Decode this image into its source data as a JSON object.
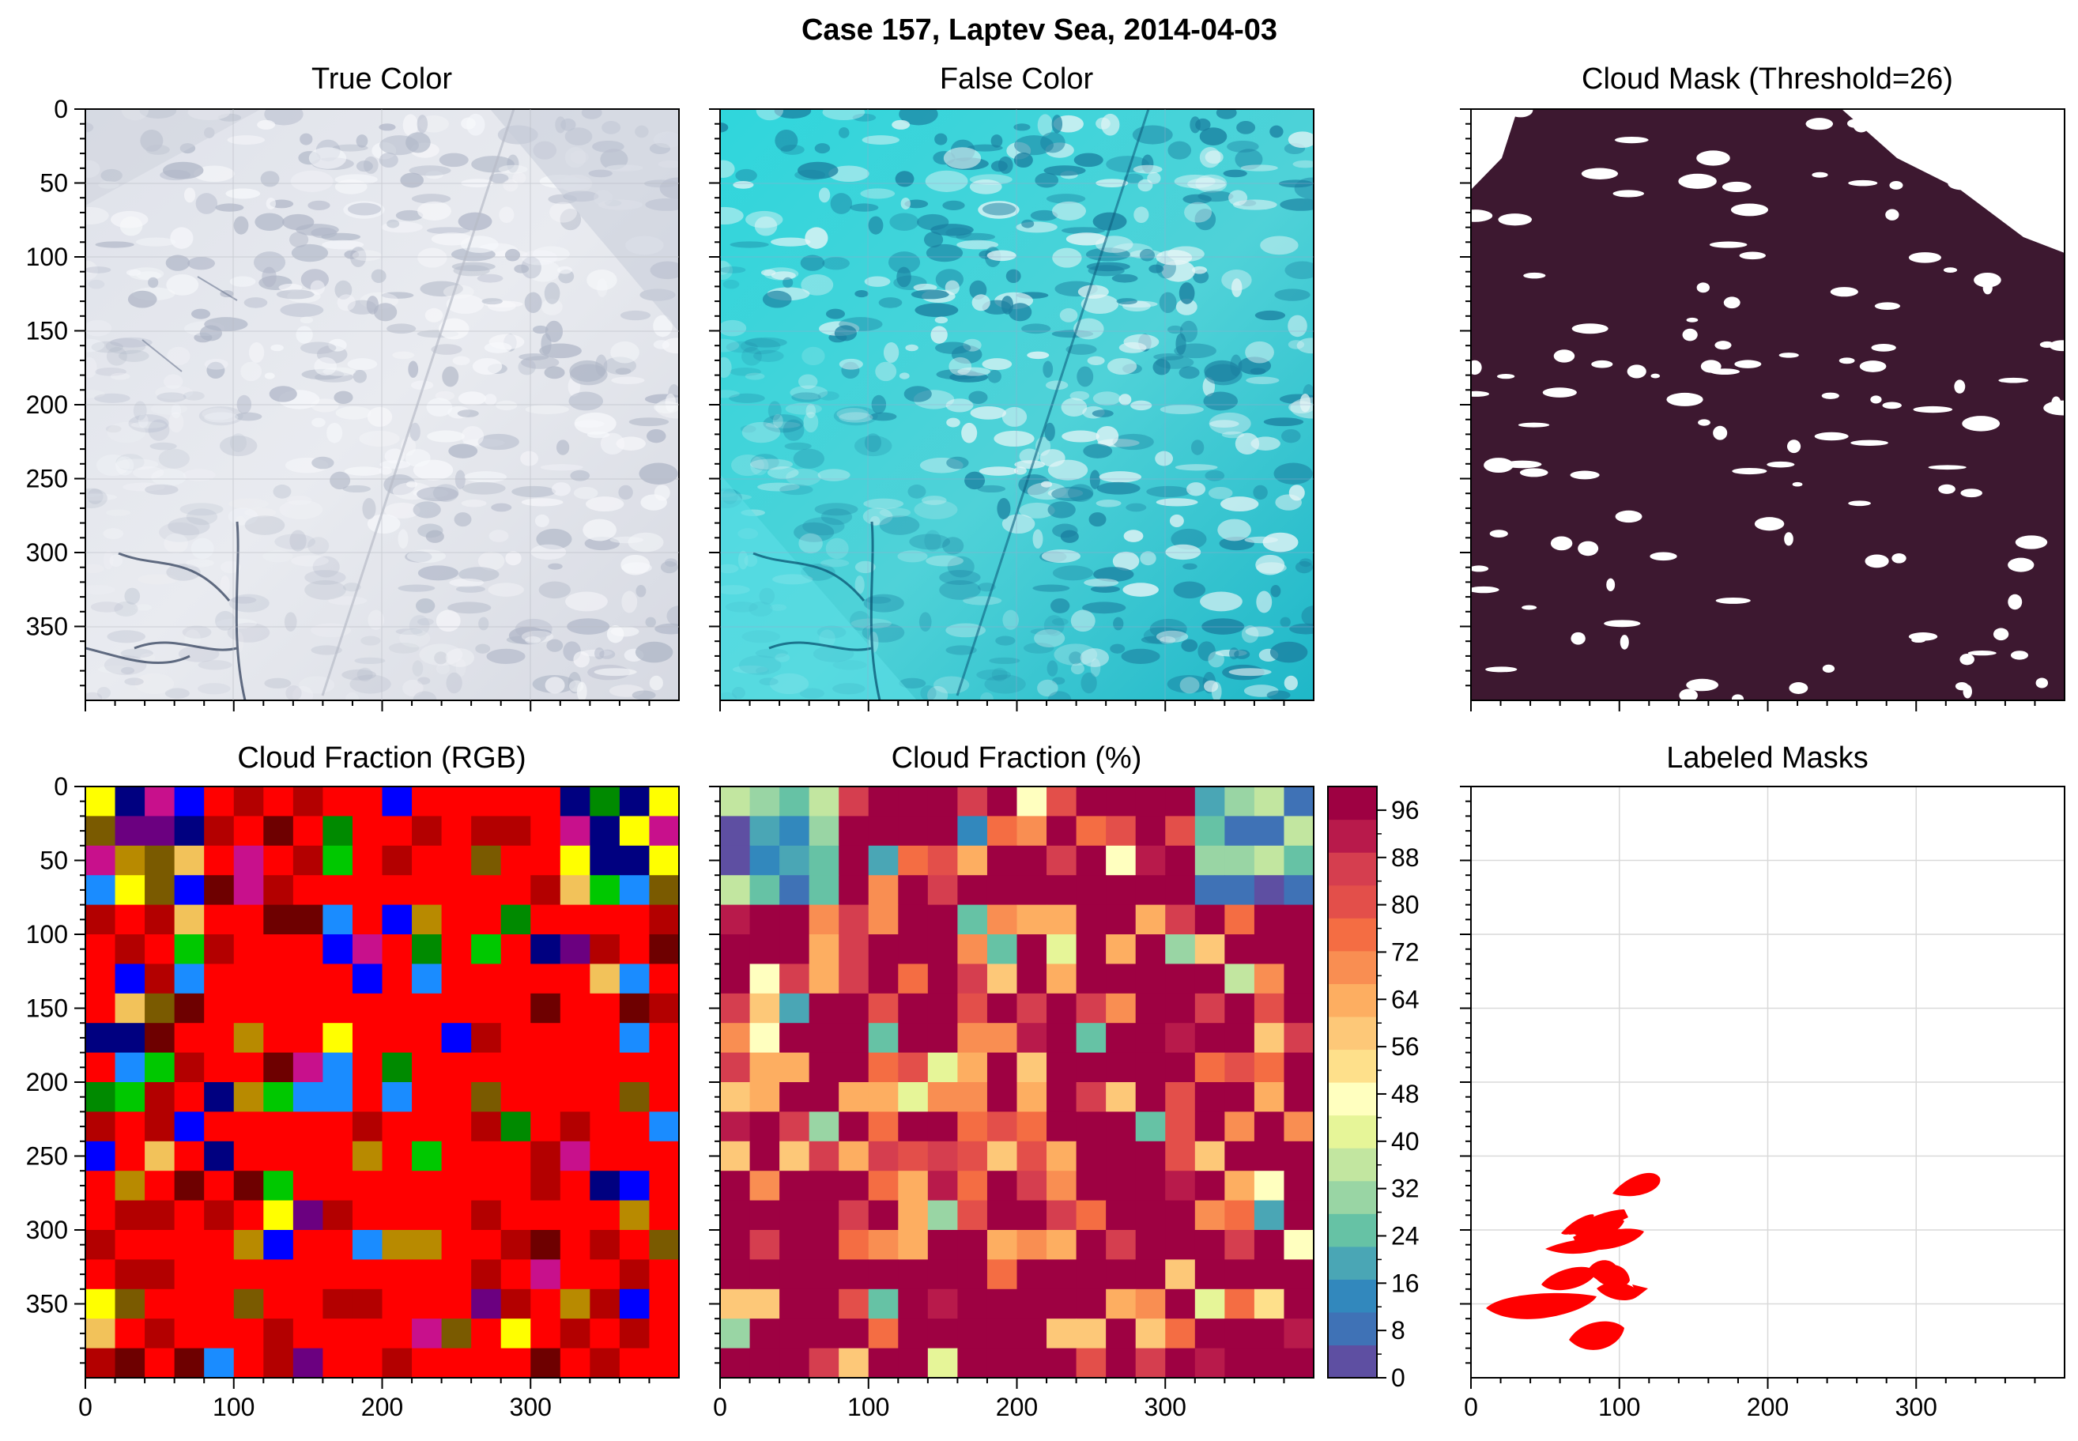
{
  "figure": {
    "suptitle": "Case 157, Laptev Sea, 2014-04-03"
  },
  "chart_data": [
    {
      "type": "image",
      "title": "True Color",
      "xlim": [
        0,
        400
      ],
      "ylim": [
        400,
        0
      ],
      "yticks": [
        "0",
        "50",
        "100",
        "150",
        "200",
        "250",
        "300",
        "350"
      ],
      "description_colors": {
        "ice": "#e3e6ec",
        "cloud": "#f4f5f8",
        "lead": "#3c4a64"
      }
    },
    {
      "type": "image",
      "title": "False Color",
      "xlim": [
        0,
        400
      ],
      "ylim": [
        400,
        0
      ],
      "description_colors": {
        "ice": "#37d9df",
        "cloud": "#e6f4f5",
        "water": "#0f6b8c"
      }
    },
    {
      "type": "heatmap",
      "title": "Cloud Mask (Threshold=26)",
      "xlim": [
        0,
        400
      ],
      "ylim": [
        400,
        0
      ],
      "colors": {
        "clear": "#3d1830",
        "cloud": "#ffffff"
      }
    },
    {
      "type": "heatmap",
      "title": "Cloud Fraction (RGB)",
      "xlim": [
        0,
        400
      ],
      "ylim": [
        400,
        0
      ],
      "yticks": [
        "0",
        "50",
        "100",
        "150",
        "200",
        "250",
        "300",
        "350"
      ],
      "xticks": [
        "0",
        "100",
        "200",
        "300"
      ],
      "grid_cells": 20,
      "palette": [
        "#ff0000",
        "#b30000",
        "#6e0000",
        "#7a5a00",
        "#b88a00",
        "#f2c25a",
        "#ffff00",
        "#00c800",
        "#008a00",
        "#1a8cff",
        "#0000ff",
        "#000080",
        "#6b0080",
        "#c8108c"
      ]
    },
    {
      "type": "heatmap",
      "title": "Cloud Fraction (%)",
      "xlim": [
        0,
        400
      ],
      "ylim": [
        400,
        0
      ],
      "xticks": [
        "0",
        "100",
        "200",
        "300"
      ],
      "grid_cells": 20,
      "colorbar": {
        "ticks": [
          "0",
          "8",
          "16",
          "24",
          "32",
          "40",
          "48",
          "56",
          "64",
          "72",
          "80",
          "88",
          "96"
        ],
        "range": [
          0,
          100
        ],
        "colors": [
          "#5e4fa2",
          "#3f72b6",
          "#3288bd",
          "#4aa6b5",
          "#66c2a5",
          "#99d5a4",
          "#c2e6a0",
          "#e6f598",
          "#ffffbf",
          "#fee08b",
          "#fdc878",
          "#fdae61",
          "#f98e52",
          "#f46d43",
          "#e34f4a",
          "#d53e4f",
          "#b81a4b",
          "#9e0142"
        ]
      }
    },
    {
      "type": "scatter",
      "title": "Labeled Masks",
      "xlim": [
        0,
        400
      ],
      "ylim": [
        400,
        0
      ],
      "xticks": [
        "0",
        "100",
        "200",
        "300"
      ],
      "grid": true,
      "mask_color": "#ff0000"
    }
  ]
}
